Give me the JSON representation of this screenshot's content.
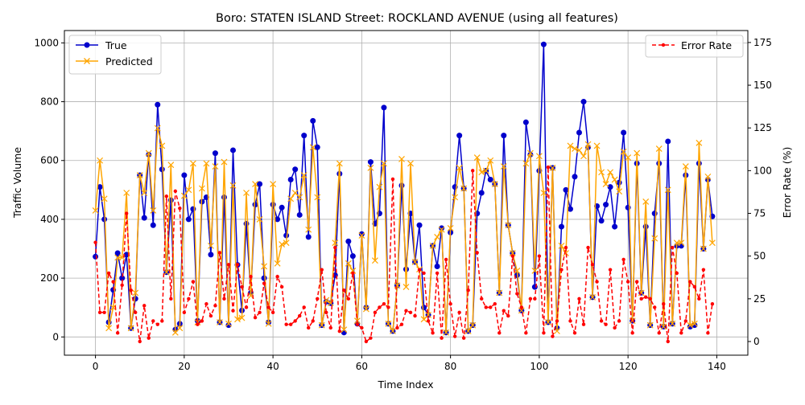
{
  "chart_data": {
    "type": "line",
    "title": "Boro: STATEN ISLAND Street: ROCKLAND AVENUE (using all features)",
    "xlabel": "Time Index",
    "ylabel_left": "Traffic Volume",
    "ylabel_right": "Error Rate (%)",
    "xlim": [
      -7,
      147
    ],
    "ylim_left": [
      -62,
      1042
    ],
    "ylim_right": [
      -8,
      182
    ],
    "x_ticks": [
      0,
      20,
      40,
      60,
      80,
      100,
      120,
      140
    ],
    "y_ticks_left": [
      0,
      200,
      400,
      600,
      800,
      1000
    ],
    "y_ticks_right": [
      0,
      25,
      50,
      75,
      100,
      125,
      150,
      175
    ],
    "grid": true,
    "legend_left_placement": "upper-left",
    "legend_right_placement": "upper-right",
    "colors": {
      "true": "#0000cc",
      "predicted": "#ffa500",
      "error": "#ff0000",
      "grid": "#b0b0b0"
    },
    "series": [
      {
        "name": "True",
        "axis": "left",
        "style": "line-circle",
        "values": [
          273,
          510,
          400,
          50,
          160,
          285,
          200,
          280,
          30,
          130,
          550,
          405,
          620,
          380,
          790,
          570,
          220,
          465,
          25,
          45,
          550,
          400,
          435,
          55,
          460,
          475,
          280,
          625,
          50,
          475,
          40,
          635,
          245,
          90,
          385,
          150,
          450,
          520,
          200,
          50,
          450,
          400,
          440,
          345,
          535,
          570,
          415,
          685,
          340,
          735,
          645,
          40,
          120,
          115,
          210,
          555,
          15,
          325,
          275,
          45,
          350,
          100,
          595,
          385,
          420,
          780,
          45,
          20,
          175,
          515,
          230,
          420,
          255,
          380,
          100,
          75,
          310,
          240,
          370,
          15,
          355,
          510,
          685,
          505,
          20,
          40,
          420,
          490,
          565,
          535,
          520,
          150,
          685,
          380,
          285,
          210,
          90,
          730,
          620,
          170,
          565,
          995,
          50,
          575,
          30,
          375,
          500,
          435,
          545,
          695,
          800,
          645,
          135,
          445,
          395,
          450,
          510,
          375,
          525,
          695,
          440,
          55,
          590,
          150,
          375,
          40,
          420,
          590,
          35,
          665,
          45,
          310,
          310,
          550,
          35,
          40,
          590,
          300,
          535,
          410
        ]
      },
      {
        "name": "Predicted",
        "axis": "left",
        "style": "line-x",
        "values": [
          430,
          600,
          470,
          30,
          100,
          270,
          270,
          490,
          30,
          150,
          550,
          490,
          625,
          430,
          710,
          650,
          220,
          585,
          15,
          30,
          480,
          500,
          590,
          50,
          505,
          590,
          310,
          580,
          50,
          595,
          45,
          515,
          60,
          65,
          490,
          140,
          520,
          400,
          240,
          45,
          520,
          250,
          315,
          320,
          470,
          490,
          475,
          550,
          365,
          645,
          475,
          40,
          125,
          115,
          320,
          590,
          25,
          250,
          225,
          55,
          345,
          95,
          575,
          260,
          510,
          590,
          45,
          20,
          175,
          605,
          170,
          590,
          255,
          230,
          60,
          75,
          310,
          340,
          365,
          15,
          370,
          475,
          575,
          505,
          20,
          40,
          610,
          560,
          565,
          600,
          520,
          150,
          580,
          380,
          285,
          225,
          90,
          590,
          625,
          225,
          615,
          490,
          50,
          575,
          20,
          310,
          285,
          650,
          640,
          635,
          615,
          655,
          135,
          650,
          560,
          520,
          560,
          535,
          495,
          630,
          610,
          55,
          625,
          150,
          460,
          40,
          335,
          640,
          35,
          500,
          45,
          320,
          320,
          580,
          40,
          45,
          660,
          300,
          545,
          320
        ]
      },
      {
        "name": "Error Rate",
        "axis": "right",
        "style": "dashed-dot",
        "values": [
          58,
          17,
          17,
          40,
          35,
          5,
          33,
          75,
          30,
          17,
          0,
          21,
          2,
          12,
          10,
          12,
          85,
          25,
          88,
          78,
          17,
          25,
          35,
          10,
          12,
          22,
          15,
          21,
          52,
          25,
          45,
          18,
          45,
          32,
          20,
          38,
          14,
          17,
          34,
          20,
          17,
          38,
          32,
          10,
          10,
          12,
          15,
          20,
          8,
          12,
          25,
          42,
          17,
          8,
          55,
          6,
          30,
          25,
          40,
          10,
          8,
          0,
          2,
          17,
          20,
          22,
          20,
          95,
          8,
          10,
          18,
          17,
          15,
          42,
          40,
          12,
          5,
          40,
          2,
          48,
          22,
          3,
          17,
          2,
          30,
          100,
          52,
          25,
          20,
          20,
          22,
          5,
          18,
          15,
          50,
          28,
          20,
          5,
          25,
          25,
          50,
          5,
          102,
          3,
          12,
          42,
          55,
          12,
          5,
          25,
          10,
          55,
          45,
          35,
          12,
          10,
          42,
          8,
          12,
          48,
          35,
          5,
          35,
          25,
          26,
          25,
          20,
          5,
          22,
          0,
          55,
          40,
          5,
          12,
          35,
          32,
          25,
          42,
          5,
          22
        ]
      }
    ]
  }
}
